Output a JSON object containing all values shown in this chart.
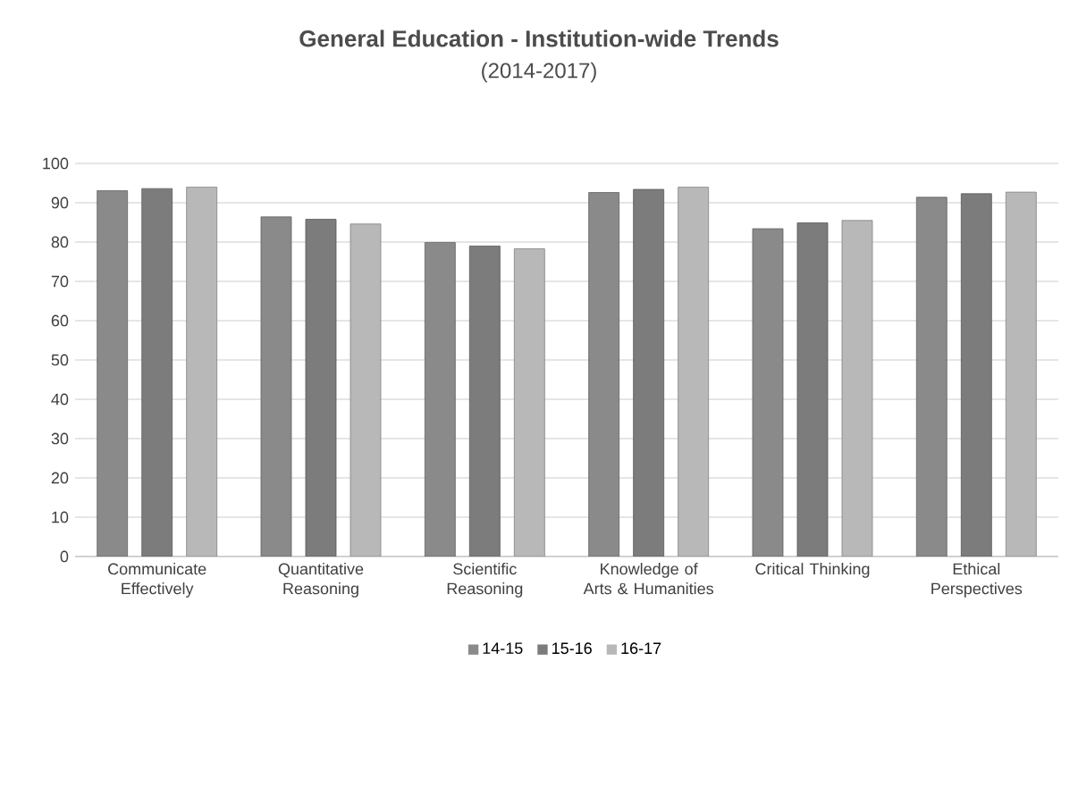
{
  "chart_data": {
    "type": "bar",
    "title": "General Education - Institution-wide Trends",
    "subtitle": "(2014-2017)",
    "categories": [
      "Communicate Effectively",
      "Quantitative Reasoning",
      "Scientific Reasoning",
      "Knowledge of Arts & Humanities",
      "Critical Thinking",
      "Ethical Perspectives"
    ],
    "series": [
      {
        "name": "14-15",
        "color": "#8a8a8a",
        "values": [
          93.1,
          86.4,
          79.9,
          92.6,
          83.4,
          91.4
        ]
      },
      {
        "name": "15-16",
        "color": "#7c7c7c",
        "values": [
          93.6,
          85.8,
          79.0,
          93.4,
          84.9,
          92.3
        ]
      },
      {
        "name": "16-17",
        "color": "#b8b8b8",
        "values": [
          94.0,
          84.6,
          78.3,
          94.0,
          85.5,
          92.7
        ]
      }
    ],
    "ylim": [
      0,
      100
    ],
    "yticks": [
      0,
      10,
      20,
      30,
      40,
      50,
      60,
      70,
      80,
      90,
      100
    ],
    "grid": "y",
    "legend": "bottom"
  }
}
